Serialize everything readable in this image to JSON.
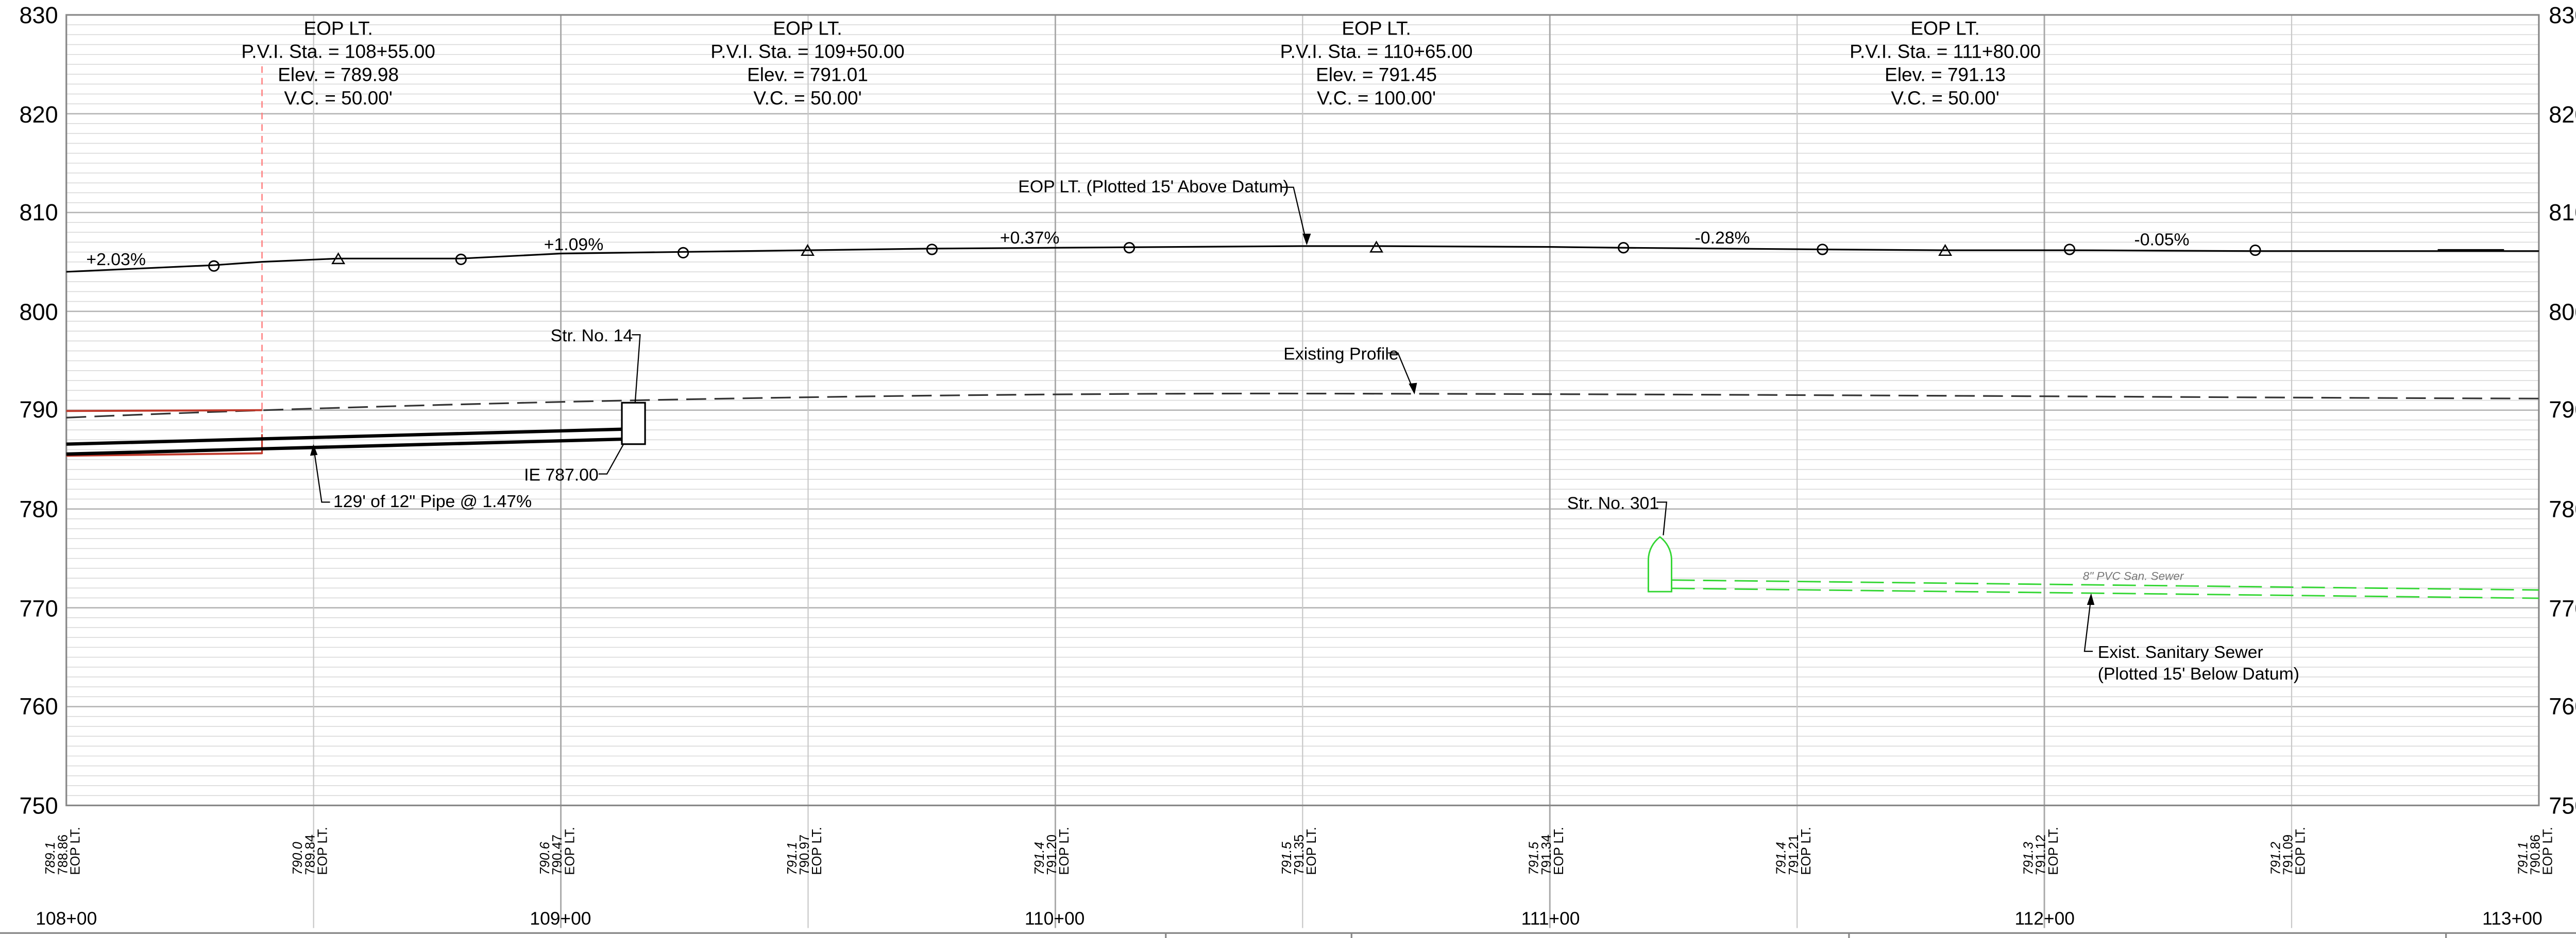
{
  "profile": {
    "y_axis": {
      "ticks": [
        "830",
        "820",
        "810",
        "800",
        "790",
        "780",
        "770",
        "760",
        "750"
      ],
      "values": [
        830,
        820,
        810,
        800,
        790,
        780,
        770,
        760,
        750
      ],
      "range": [
        750,
        830
      ]
    },
    "x_axis": {
      "ticks": [
        "108+00",
        "109+00",
        "110+00",
        "111+00",
        "112+00",
        "113+00"
      ],
      "values": [
        10800,
        10900,
        11000,
        11100,
        11200,
        11300
      ]
    },
    "pvi_blocks": [
      {
        "title": "EOP LT.",
        "sta": "P.V.I. Sta. = 108+55.00",
        "elev": "Elev. = 789.98",
        "vc": "V.C. = 50.00'"
      },
      {
        "title": "EOP LT.",
        "sta": "P.V.I. Sta. = 109+50.00",
        "elev": "Elev. = 791.01",
        "vc": "V.C. = 50.00'"
      },
      {
        "title": "EOP LT.",
        "sta": "P.V.I. Sta. = 110+65.00",
        "elev": "Elev. = 791.45",
        "vc": "V.C. = 100.00'"
      },
      {
        "title": "EOP LT.",
        "sta": "P.V.I. Sta. = 111+80.00",
        "elev": "Elev. = 791.13",
        "vc": "V.C. = 50.00'"
      }
    ],
    "grades": [
      "+2.03%",
      "+1.09%",
      "+0.37%",
      "-0.28%",
      "-0.05%"
    ],
    "callouts": {
      "eop": "EOP LT. (Plotted 15' Above Datum)",
      "existing": "Existing Profile",
      "str14": "Str. No. 14",
      "ie": "IE 787.00",
      "pipe": "129' of 12\" Pipe @ 1.47%",
      "str301": "Str. No. 301",
      "sewer_line1": "Exist. Sanitary Sewer",
      "sewer_line2": "(Plotted 15' Below Datum)",
      "sewer_tag": "8\" PVC San. Sewer"
    },
    "bottom_labels": [
      {
        "exist": "789.1",
        "prop": "788.86",
        "name": "EOP LT."
      },
      {
        "exist": "790.0",
        "prop": "789.84",
        "name": "EOP LT."
      },
      {
        "exist": "790.6",
        "prop": "790.47",
        "name": "EOP LT."
      },
      {
        "exist": "791.1",
        "prop": "790.97",
        "name": "EOP LT."
      },
      {
        "exist": "791.4",
        "prop": "791.20",
        "name": "EOP LT."
      },
      {
        "exist": "791.5",
        "prop": "791.35",
        "name": "EOP LT."
      },
      {
        "exist": "791.5",
        "prop": "791.34",
        "name": "EOP LT."
      },
      {
        "exist": "791.4",
        "prop": "791.21",
        "name": "EOP LT."
      },
      {
        "exist": "791.3",
        "prop": "791.12",
        "name": "EOP LT."
      },
      {
        "exist": "791.2",
        "prop": "791.09",
        "name": "EOP LT."
      },
      {
        "exist": "791.1",
        "prop": "790.86",
        "name": "EOP LT."
      }
    ],
    "colors": {
      "grid_major": "#b4b4b4",
      "grid_minor": "#d9d9d9",
      "line": "#000000",
      "pipe_red": "#c0392b",
      "center_red": "#ff8080",
      "sewer": "#33d633",
      "existing": "#333333"
    }
  }
}
